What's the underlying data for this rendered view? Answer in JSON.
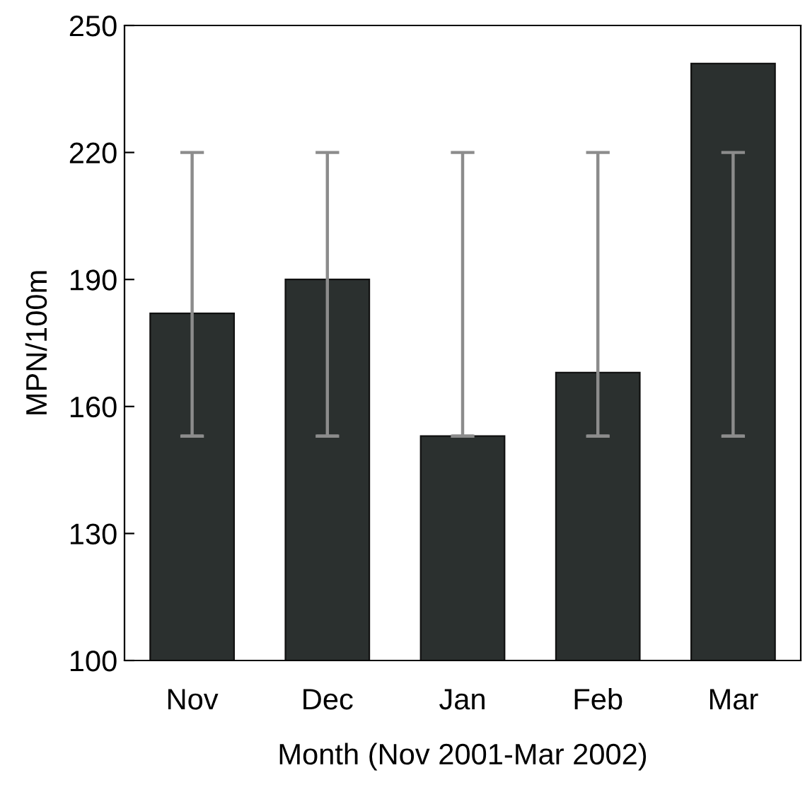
{
  "chart_data": {
    "type": "bar",
    "xlabel": "Month (Nov 2001-Mar 2002)",
    "ylabel": "MPN/100m",
    "categories": [
      "Nov",
      "Dec",
      "Jan",
      "Feb",
      "Mar"
    ],
    "values": [
      182,
      190,
      153,
      168,
      241
    ],
    "errors": [
      [
        153,
        220
      ],
      [
        153,
        220
      ],
      [
        153,
        220
      ],
      [
        153,
        220
      ],
      [
        153,
        220
      ]
    ],
    "color": "#2b302f",
    "ylim": [
      100,
      250
    ],
    "yticks": [
      100,
      130,
      160,
      190,
      220,
      250
    ],
    "grid": false
  }
}
